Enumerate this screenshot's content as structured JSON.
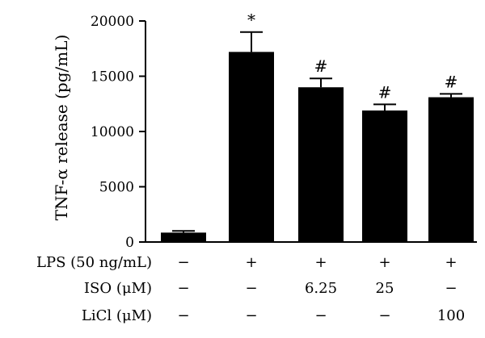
{
  "chart_data": {
    "type": "bar",
    "title": "",
    "ylabel": "TNF-α release (pg/mL)",
    "ylim": [
      0,
      20000
    ],
    "yticks": [
      0,
      5000,
      10000,
      15000,
      20000
    ],
    "values": [
      850,
      17200,
      14000,
      11900,
      13100
    ],
    "errors": [
      150,
      1800,
      800,
      550,
      300
    ],
    "significance": [
      "",
      "*",
      "#",
      "#",
      "#"
    ],
    "bar_color": "#000000",
    "treatment_rows": [
      {
        "label": "LPS (50 ng/mL)",
        "values": [
          "−",
          "+",
          "+",
          "+",
          "+"
        ]
      },
      {
        "label": "ISO (μM)",
        "values": [
          "−",
          "−",
          "6.25",
          "25",
          "−"
        ]
      },
      {
        "label": "LiCl (μM)",
        "values": [
          "−",
          "−",
          "−",
          "−",
          "100"
        ]
      }
    ]
  }
}
